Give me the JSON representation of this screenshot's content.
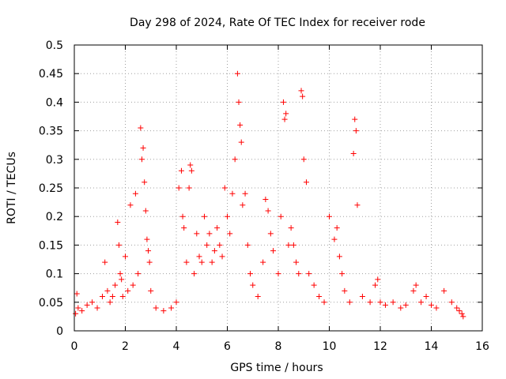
{
  "chart_data": {
    "type": "scatter",
    "title": "Day 298 of 2024, Rate Of TEC Index for receiver rode",
    "xlabel": "GPS time / hours",
    "ylabel": "ROTI / TECUs",
    "xlim": [
      0,
      16
    ],
    "ylim": [
      0,
      0.5
    ],
    "xticks": [
      0,
      2,
      4,
      6,
      8,
      10,
      12,
      14,
      16
    ],
    "yticks": [
      0,
      0.05,
      0.1,
      0.15,
      0.2,
      0.25,
      0.3,
      0.35,
      0.4,
      0.45,
      0.5
    ],
    "xtick_labels": [
      "0",
      "2",
      "4",
      "6",
      "8",
      "10",
      "12",
      "14",
      "16"
    ],
    "ytick_labels": [
      "0",
      "0.05",
      "0.1",
      "0.15",
      "0.2",
      "0.25",
      "0.3",
      "0.35",
      "0.4",
      "0.45",
      "0.5"
    ],
    "grid": true,
    "marker": "+",
    "color": "#ff0000",
    "series": [
      {
        "name": "ROTI",
        "x": [
          0.05,
          0.1,
          0.15,
          0.3,
          0.5,
          0.7,
          0.9,
          1.1,
          1.2,
          1.3,
          1.4,
          1.5,
          1.6,
          1.7,
          1.75,
          1.8,
          1.85,
          1.9,
          2.0,
          2.1,
          2.2,
          2.3,
          2.4,
          2.5,
          2.6,
          2.65,
          2.7,
          2.75,
          2.8,
          2.85,
          2.9,
          2.95,
          3.0,
          3.2,
          3.5,
          3.8,
          4.0,
          4.1,
          4.2,
          4.25,
          4.3,
          4.4,
          4.5,
          4.55,
          4.6,
          4.7,
          4.8,
          4.9,
          5.0,
          5.1,
          5.2,
          5.3,
          5.4,
          5.5,
          5.6,
          5.7,
          5.8,
          5.9,
          6.0,
          6.1,
          6.2,
          6.3,
          6.4,
          6.45,
          6.5,
          6.55,
          6.6,
          6.7,
          6.8,
          6.9,
          7.0,
          7.2,
          7.4,
          7.5,
          7.6,
          7.7,
          7.8,
          8.0,
          8.1,
          8.2,
          8.25,
          8.3,
          8.4,
          8.5,
          8.6,
          8.7,
          8.8,
          8.9,
          8.95,
          9.0,
          9.1,
          9.2,
          9.4,
          9.6,
          9.8,
          10.0,
          10.2,
          10.3,
          10.4,
          10.5,
          10.6,
          10.8,
          10.95,
          11.0,
          11.05,
          11.1,
          11.3,
          11.6,
          11.8,
          11.9,
          12.0,
          12.2,
          12.5,
          12.8,
          13.0,
          13.3,
          13.4,
          13.6,
          13.8,
          14.0,
          14.2,
          14.5,
          14.8,
          15.0,
          15.1,
          15.2,
          15.25
        ],
        "y": [
          0.03,
          0.065,
          0.04,
          0.035,
          0.045,
          0.05,
          0.04,
          0.06,
          0.12,
          0.07,
          0.05,
          0.06,
          0.08,
          0.19,
          0.15,
          0.1,
          0.09,
          0.06,
          0.13,
          0.07,
          0.22,
          0.08,
          0.24,
          0.1,
          0.355,
          0.3,
          0.32,
          0.26,
          0.21,
          0.16,
          0.14,
          0.12,
          0.07,
          0.04,
          0.035,
          0.04,
          0.05,
          0.25,
          0.28,
          0.2,
          0.18,
          0.12,
          0.25,
          0.29,
          0.28,
          0.1,
          0.17,
          0.13,
          0.12,
          0.2,
          0.15,
          0.17,
          0.12,
          0.14,
          0.18,
          0.15,
          0.13,
          0.25,
          0.2,
          0.17,
          0.24,
          0.3,
          0.45,
          0.4,
          0.36,
          0.33,
          0.22,
          0.24,
          0.15,
          0.1,
          0.08,
          0.06,
          0.12,
          0.23,
          0.21,
          0.17,
          0.14,
          0.1,
          0.2,
          0.4,
          0.37,
          0.38,
          0.15,
          0.18,
          0.15,
          0.12,
          0.1,
          0.42,
          0.41,
          0.3,
          0.26,
          0.1,
          0.08,
          0.06,
          0.05,
          0.2,
          0.16,
          0.18,
          0.13,
          0.1,
          0.07,
          0.05,
          0.31,
          0.37,
          0.35,
          0.22,
          0.06,
          0.05,
          0.08,
          0.09,
          0.05,
          0.045,
          0.05,
          0.04,
          0.045,
          0.07,
          0.08,
          0.05,
          0.06,
          0.045,
          0.04,
          0.07,
          0.05,
          0.04,
          0.035,
          0.03,
          0.025
        ]
      }
    ]
  }
}
